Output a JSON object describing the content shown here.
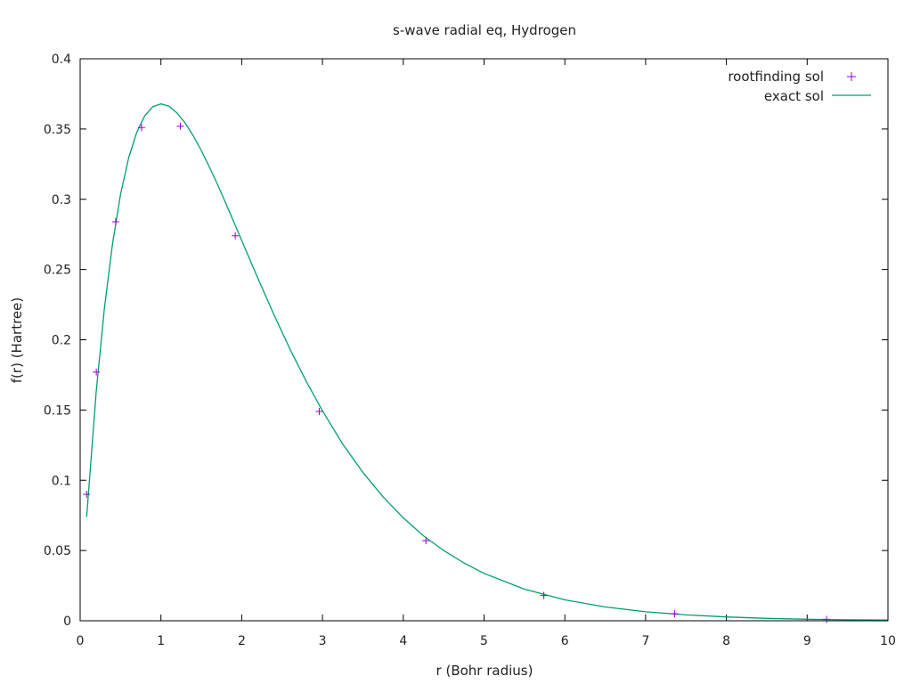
{
  "chart_data": {
    "type": "line",
    "title": "s-wave radial eq, Hydrogen",
    "xlabel": "r (Bohr radius)",
    "ylabel": "f(r) (Hartree)",
    "xlim": [
      0,
      10
    ],
    "ylim": [
      0,
      0.4
    ],
    "x_ticks": [
      "0",
      "1",
      "2",
      "3",
      "4",
      "5",
      "6",
      "7",
      "8",
      "9",
      "10"
    ],
    "y_ticks": [
      "0",
      "0.05",
      "0.1",
      "0.15",
      "0.2",
      "0.25",
      "0.3",
      "0.35",
      "0.4"
    ],
    "grid": false,
    "legend_position": "top-right",
    "series": [
      {
        "name": "rootfinding sol",
        "style": "points",
        "marker": "plus",
        "color": "#9400d3",
        "x": [
          0.08,
          0.2,
          0.44,
          0.76,
          1.24,
          1.92,
          2.96,
          4.28,
          5.74,
          7.36,
          9.24
        ],
        "y": [
          0.09,
          0.177,
          0.284,
          0.351,
          0.352,
          0.274,
          0.149,
          0.057,
          0.018,
          0.005,
          0.001
        ]
      },
      {
        "name": "exact sol",
        "style": "line",
        "color": "#009e73",
        "function": "x*exp(-x)",
        "x": [
          0.08,
          0.2,
          0.3,
          0.4,
          0.5,
          0.6,
          0.7,
          0.8,
          0.9,
          1.0,
          1.1,
          1.2,
          1.3,
          1.4,
          1.5,
          1.6,
          1.7,
          1.8,
          1.9,
          2.0,
          2.2,
          2.4,
          2.6,
          2.8,
          3.0,
          3.25,
          3.5,
          3.75,
          4.0,
          4.25,
          4.5,
          4.75,
          5.0,
          5.5,
          6.0,
          6.5,
          7.0,
          7.5,
          8.0,
          8.5,
          9.0,
          9.5,
          10.0
        ],
        "y": [
          0.0739,
          0.1637,
          0.2222,
          0.2681,
          0.3033,
          0.3293,
          0.3476,
          0.3595,
          0.3659,
          0.3679,
          0.3662,
          0.3614,
          0.3543,
          0.3452,
          0.3347,
          0.323,
          0.3106,
          0.2975,
          0.2842,
          0.2707,
          0.2438,
          0.2177,
          0.1931,
          0.1703,
          0.1494,
          0.1258,
          0.1057,
          0.0882,
          0.0733,
          0.0605,
          0.05,
          0.0412,
          0.0337,
          0.0225,
          0.0149,
          0.0098,
          0.0064,
          0.0042,
          0.0027,
          0.0017,
          0.0011,
          0.0007,
          0.0005
        ]
      }
    ]
  }
}
